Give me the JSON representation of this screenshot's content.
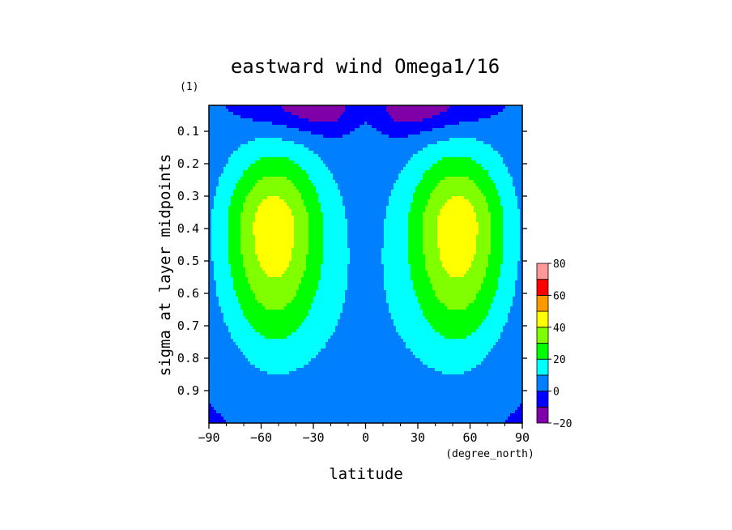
{
  "chart_data": {
    "type": "contour",
    "title": "eastward wind Omega1/16",
    "xlabel": "latitude",
    "x_units": "(degree_north)",
    "ylabel": "sigma at layer midpoints",
    "y_units": "(1)",
    "xlim": [
      -90,
      90
    ],
    "ylim": [
      1.0,
      0.02
    ],
    "x_ticks": [
      -90,
      -60,
      -30,
      0,
      30,
      60,
      90
    ],
    "x_tick_labels": [
      "−90",
      "−60",
      "−30",
      "0",
      "30",
      "60",
      "90"
    ],
    "y_ticks": [
      0.1,
      0.2,
      0.3,
      0.4,
      0.5,
      0.6,
      0.7,
      0.8,
      0.9
    ],
    "y_tick_labels": [
      "0.1",
      "0.2",
      "0.3",
      "0.4",
      "0.5",
      "0.6",
      "0.7",
      "0.8",
      "0.9"
    ],
    "colorbar": {
      "levels": [
        -20,
        -10,
        0,
        10,
        20,
        30,
        40,
        50,
        60,
        70,
        80
      ],
      "colors": [
        "#7f00a8",
        "#0000ff",
        "#0080ff",
        "#00ffff",
        "#00ff00",
        "#80ff00",
        "#ffff00",
        "#ff9900",
        "#ff0000",
        "#ff9999"
      ],
      "tick_values": [
        -20,
        0,
        20,
        40,
        60,
        80
      ],
      "tick_labels": [
        "−20",
        "0",
        "20",
        "40",
        "60",
        "80"
      ]
    },
    "field": {
      "description_values": "approximate eastward wind (m/s): twin mid-latitude jets peaking ~55 near 60S/60N at sigma~0.4, weak near 0 at surface, negative near top over pole-to-equator",
      "jet_peak_value": 55,
      "jet_latitudes": [
        -60,
        60
      ],
      "jet_sigma": 0.4,
      "top_minimum_value": -25
    }
  }
}
